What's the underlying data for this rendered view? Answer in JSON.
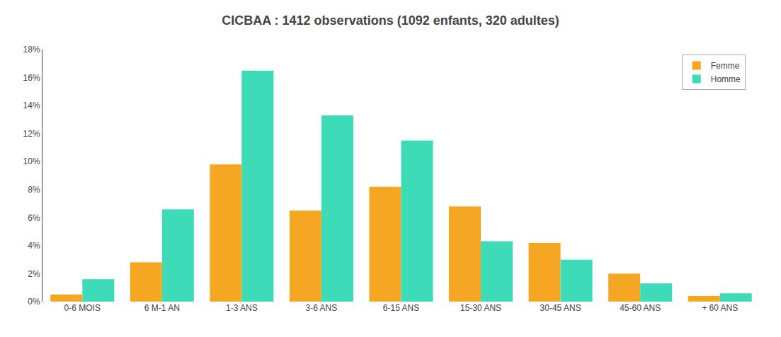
{
  "chart_data": {
    "type": "bar",
    "title": "CICBAA : 1412 observations (1092 enfants, 320 adultes)",
    "categories": [
      "0-6 MOIS",
      "6 M-1 AN",
      "1-3 ANS",
      "3-6 ANS",
      "6-15 ANS",
      "15-30 ANS",
      "30-45 ANS",
      "45-60 ANS",
      "+ 60 ANS"
    ],
    "series": [
      {
        "name": "Femme",
        "color": "#F5A623",
        "values": [
          0.5,
          2.8,
          9.8,
          6.5,
          8.2,
          6.8,
          4.2,
          2.0,
          0.4
        ]
      },
      {
        "name": "Homme",
        "color": "#3DDBB8",
        "values": [
          1.6,
          6.6,
          16.5,
          13.3,
          11.5,
          4.3,
          3.0,
          1.3,
          0.6
        ]
      }
    ],
    "ylim": [
      0,
      18
    ],
    "yticks": [
      {
        "value": 0,
        "label": "0%"
      },
      {
        "value": 2,
        "label": "2%"
      },
      {
        "value": 4,
        "label": "4%"
      },
      {
        "value": 6,
        "label": "6%"
      },
      {
        "value": 8,
        "label": "8%"
      },
      {
        "value": 10,
        "label": "10%"
      },
      {
        "value": 12,
        "label": "12%"
      },
      {
        "value": 14,
        "label": "14%"
      },
      {
        "value": 16,
        "label": "16%"
      },
      {
        "value": 18,
        "label": "18%"
      }
    ],
    "grid": false,
    "legend": "upper right"
  }
}
